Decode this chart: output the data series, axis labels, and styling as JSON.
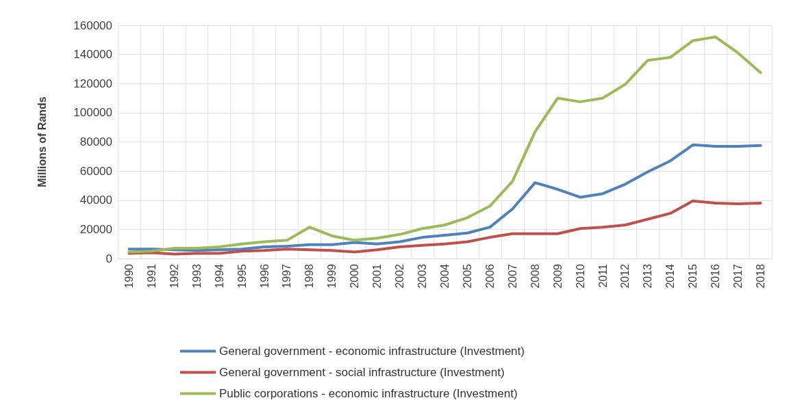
{
  "chart_data": {
    "type": "line",
    "ylabel": "Millions of Rands",
    "categories": [
      "1990",
      "1991",
      "1992",
      "1993",
      "1994",
      "1995",
      "1996",
      "1997",
      "1998",
      "1999",
      "2000",
      "2001",
      "2002",
      "2003",
      "2004",
      "2005",
      "2006",
      "2007",
      "2008",
      "2009",
      "2010",
      "2011",
      "2012",
      "2013",
      "2014",
      "2015",
      "2016",
      "2017",
      "2018"
    ],
    "series": [
      {
        "name": "General government - economic infrastructure (Investment)",
        "color": "#4f81bd",
        "values": [
          6500,
          6500,
          6000,
          5500,
          6000,
          6500,
          8000,
          8500,
          9500,
          9500,
          11000,
          10000,
          11500,
          14500,
          16000,
          17500,
          21500,
          34000,
          52000,
          47500,
          42000,
          44500,
          51000,
          59500,
          67000,
          78000,
          77000,
          77000,
          77500
        ]
      },
      {
        "name": "General government - social infrastructure (Investment)",
        "color": "#c0504d",
        "values": [
          3500,
          4000,
          3000,
          3500,
          3500,
          5000,
          5500,
          6500,
          6000,
          5500,
          4500,
          6000,
          8000,
          9000,
          10000,
          11500,
          14500,
          17000,
          17000,
          17000,
          20500,
          21500,
          23000,
          27000,
          31000,
          39500,
          38000,
          37500,
          38000
        ]
      },
      {
        "name": "Public corporations - economic infrastructure (Investment)",
        "color": "#9bbb59",
        "values": [
          4500,
          5000,
          7000,
          7000,
          8000,
          10000,
          11500,
          12500,
          21500,
          15500,
          12500,
          14000,
          16500,
          20500,
          23000,
          28000,
          36000,
          53000,
          87000,
          110000,
          107500,
          110000,
          119500,
          136000,
          138000,
          149500,
          152000,
          141000,
          127500
        ]
      }
    ],
    "ylim": [
      0,
      160000
    ],
    "yticks": [
      0,
      20000,
      40000,
      60000,
      80000,
      100000,
      120000,
      140000,
      160000
    ],
    "grid": true,
    "legend": "bottom",
    "marker": "none",
    "line_style": "solid"
  }
}
